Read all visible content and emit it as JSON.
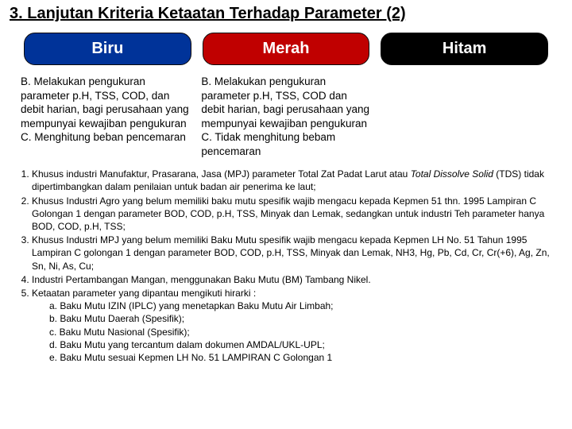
{
  "title": "3. Lanjutan Kriteria Ketaatan Terhadap Parameter (2)",
  "pills": {
    "biru": "Biru",
    "merah": "Merah",
    "hitam": "Hitam"
  },
  "columns": {
    "biru": "B. Melakukan pengukuran parameter p.H, TSS, COD, dan debit harian, bagi perusahaan yang mempunyai kewajiban pengukuran\nC. Menghitung beban pencemaran",
    "merah": "B. Melakukan pengukuran parameter p.H, TSS, COD dan debit harian, bagi perusahaan yang mempunyai kewajiban pengukuran\nC. Tidak menghitung bebam pencemaran"
  },
  "notes": {
    "n1a": "Khusus industri Manufaktur, Prasarana, Jasa (MPJ)  parameter Total Zat Padat Larut atau ",
    "n1b": "Total Dissolve Solid",
    "n1c": " (TDS) tidak dipertimbangkan dalam penilaian untuk badan air penerima ke laut;",
    "n2": "Khusus Industri Agro yang belum memiliki baku mutu spesifik wajib mengacu kepada Kepmen 51 thn. 1995 Lampiran C Golongan 1 dengan parameter BOD, COD, p.H, TSS, Minyak dan Lemak, sedangkan untuk industri Teh parameter hanya BOD, COD, p.H, TSS;",
    "n3": "Khusus Industri MPJ  yang belum memiliki Baku Mutu spesifik wajib mengacu kepada Kepmen LH No. 51 Tahun 1995 Lampiran C golongan 1 dengan parameter BOD, COD, p.H, TSS, Minyak dan Lemak, NH3, Hg, Pb, Cd, Cr, Cr(+6), Ag, Zn, Sn, Ni, As, Cu;",
    "n4": "Industri Pertambangan Mangan,  menggunakan Baku Mutu (BM) Tambang Nikel.",
    "n5": "Ketaatan parameter yang dipantau mengikuti hirarki :",
    "sub": {
      "a": "a.  Baku Mutu IZIN (IPLC) yang menetapkan Baku Mutu Air Limbah;",
      "b": "b.  Baku Mutu Daerah (Spesifik);",
      "c": "c.  Baku Mutu Nasional (Spesifik);",
      "d": "d.  Baku Mutu yang tercantum dalam dokumen AMDAL/UKL-UPL;",
      "e": "e.  Baku Mutu sesuai Kepmen LH No. 51 LAMPIRAN C Golongan 1"
    }
  }
}
